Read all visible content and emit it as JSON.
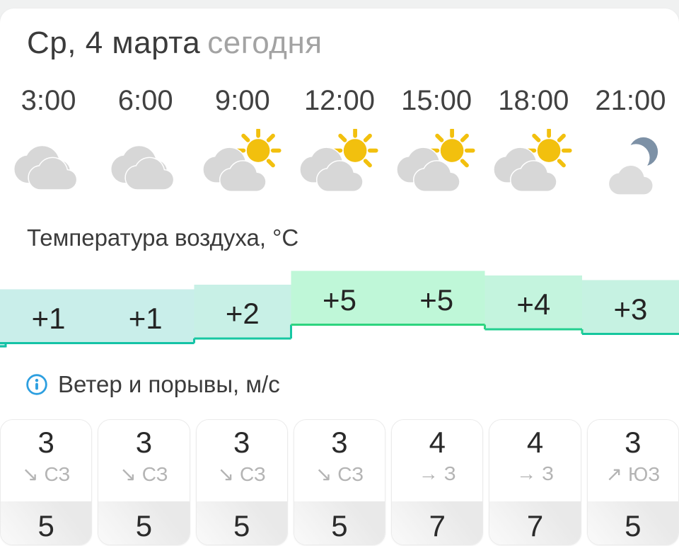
{
  "header": {
    "date": "Ср, 4 марта",
    "today": "сегодня"
  },
  "labels": {
    "temperature": "Температура воздуха, °C",
    "wind": "Ветер и порывы, м/с"
  },
  "columns": [
    {
      "time": "3:00",
      "icon": "cloudy-icon",
      "temp": 1,
      "temp_label": "+1",
      "wind": {
        "speed": "3",
        "arrow": "↘",
        "dir": "СЗ",
        "gust": "5"
      }
    },
    {
      "time": "6:00",
      "icon": "cloudy-icon",
      "temp": 1,
      "temp_label": "+1",
      "wind": {
        "speed": "3",
        "arrow": "↘",
        "dir": "СЗ",
        "gust": "5"
      }
    },
    {
      "time": "9:00",
      "icon": "sun-clouds-icon",
      "temp": 2,
      "temp_label": "+2",
      "wind": {
        "speed": "3",
        "arrow": "↘",
        "dir": "СЗ",
        "gust": "5"
      }
    },
    {
      "time": "12:00",
      "icon": "sun-clouds-icon",
      "temp": 5,
      "temp_label": "+5",
      "wind": {
        "speed": "3",
        "arrow": "↘",
        "dir": "СЗ",
        "gust": "5"
      }
    },
    {
      "time": "15:00",
      "icon": "sun-clouds-icon",
      "temp": 5,
      "temp_label": "+5",
      "wind": {
        "speed": "4",
        "arrow": "→",
        "dir": "З",
        "gust": "7"
      }
    },
    {
      "time": "18:00",
      "icon": "sun-clouds-icon",
      "temp": 4,
      "temp_label": "+4",
      "wind": {
        "speed": "4",
        "arrow": "→",
        "dir": "З",
        "gust": "7"
      }
    },
    {
      "time": "21:00",
      "icon": "moon-cloud-icon",
      "temp": 3,
      "temp_label": "+3",
      "wind": {
        "speed": "3",
        "arrow": "↗",
        "dir": "ЮЗ",
        "gust": "5"
      }
    }
  ],
  "colors": {
    "accent_blue": "#2d9fe0",
    "sun": "#f2c00e",
    "moon": "#7d91a6",
    "cloud": "#d7d7d7",
    "temp_fill": {
      "0": "#cbeeea",
      "1": "#c9eeea",
      "2": "#c8f0e6",
      "3": "#c6f2e2",
      "4": "#c4f4de",
      "5": "#bff7d8"
    },
    "temp_border": {
      "0": "#13c1a7",
      "1": "#14c3a6",
      "2": "#17c7a2",
      "3": "#15c79e",
      "4": "#23cf90",
      "5": "#2ed47f"
    }
  }
}
